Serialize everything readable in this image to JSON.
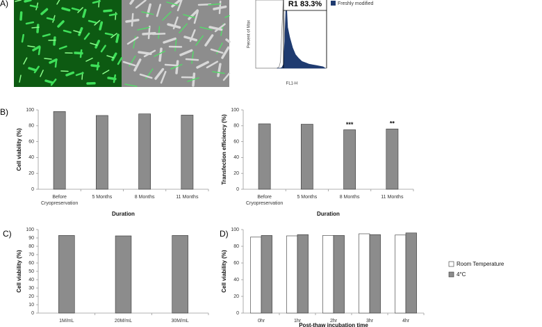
{
  "panels": [
    "A)",
    "B)",
    "C)",
    "D)"
  ],
  "chart_data": [
    {
      "type": "area",
      "ylabel": "Percent of Max",
      "xlabel": "FL1-H",
      "annotation": "R1 83.3%",
      "x": [
        30,
        33,
        35,
        37,
        39,
        41,
        43,
        45,
        48,
        52,
        56,
        60,
        65,
        70,
        75,
        80,
        85,
        90,
        95,
        98
      ],
      "series": [
        {
          "color": "#888888",
          "values": [
            0,
            2,
            10,
            60,
            100,
            40,
            10,
            3,
            1,
            0,
            0,
            0,
            0,
            0,
            0,
            0,
            0,
            0,
            0,
            0
          ]
        },
        {
          "name": "Freshly modified",
          "color": "#1f3b70",
          "values": [
            0,
            0,
            0,
            1,
            5,
            40,
            100,
            60,
            45,
            30,
            20,
            15,
            10,
            8,
            6,
            5,
            4,
            3,
            2,
            0
          ]
        }
      ],
      "xlim": [
        0,
        100
      ],
      "ylim": [
        0,
        100
      ]
    },
    {
      "type": "bar",
      "ylabel": "Cell viability (%)",
      "xlabel": "Duration",
      "categories": [
        "Before Cryopreservation",
        "5 Months",
        "8 Months",
        "11 Months"
      ],
      "series": [
        {
          "color": "#8c8c8c",
          "values": [
            98,
            93,
            95,
            93.5
          ]
        }
      ],
      "ylim": [
        0,
        100
      ],
      "yticks": [
        0,
        20,
        40,
        60,
        80,
        100
      ]
    },
    {
      "type": "bar",
      "ylabel": "Transfection efficiency (%)",
      "xlabel": "Duration",
      "categories": [
        "Before Cryopreservation",
        "5 Months",
        "8 Months",
        "11 Months"
      ],
      "series": [
        {
          "color": "#8c8c8c",
          "values": [
            82.5,
            82,
            75,
            76
          ]
        }
      ],
      "annotations": [
        null,
        null,
        "***",
        "**"
      ],
      "ylim": [
        0,
        100
      ],
      "yticks": [
        0,
        20,
        40,
        60,
        80,
        100
      ]
    },
    {
      "type": "bar",
      "ylabel": "Cell viability (%)",
      "categories": [
        "1M/mL",
        "20M/mL",
        "30M/mL"
      ],
      "series": [
        {
          "color": "#8c8c8c",
          "values": [
            93,
            92.5,
            93
          ]
        }
      ],
      "ylim": [
        0,
        100
      ],
      "yticks": [
        0,
        10,
        20,
        30,
        40,
        50,
        60,
        70,
        80,
        90,
        100
      ]
    },
    {
      "type": "bar",
      "ylabel": "Cell viability (%)",
      "xlabel": "Post-thaw incubation time",
      "categories": [
        "0hr",
        "1hr",
        "2hr",
        "3hr",
        "4hr"
      ],
      "series": [
        {
          "name": "Room Temperature",
          "color": "#ffffff",
          "values": [
            91,
            92.5,
            93,
            95,
            93.5
          ]
        },
        {
          "name": "4°C",
          "color": "#8c8c8c",
          "values": [
            93,
            94,
            93,
            94,
            96
          ]
        }
      ],
      "ylim": [
        0,
        100
      ],
      "yticks": [
        0,
        20,
        40,
        60,
        80,
        100
      ]
    }
  ]
}
